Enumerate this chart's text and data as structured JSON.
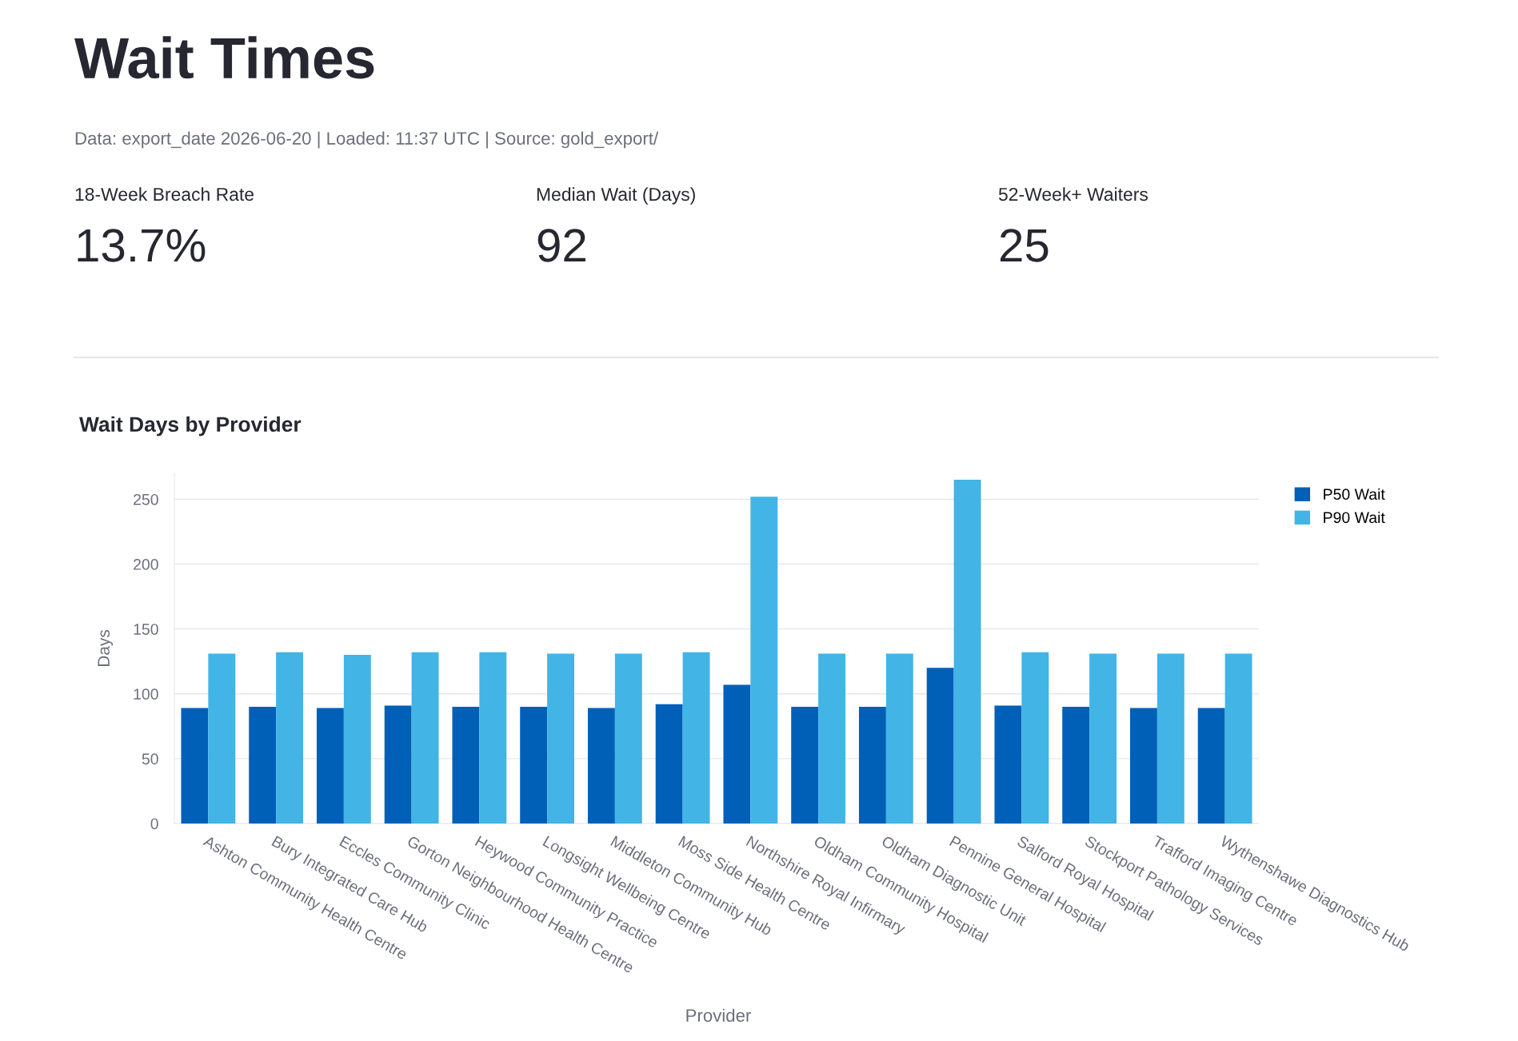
{
  "chart_data": [
    {
      "type": "other",
      "title": "Wait Times",
      "subtitle": "Data: export_date 2026-06-20 | Loaded: 11:37 UTC | Source: gold_export/",
      "annotations": [
        "18-Week Breach Rate",
        "13.7%",
        "Median Wait (Days)",
        "92",
        "52-Week+ Waiters",
        "25"
      ]
    },
    {
      "type": "bar",
      "title": "Wait Days by Provider",
      "xlabel": "Provider",
      "ylabel": "Days",
      "categories": [
        "Ashton Community Health Centre",
        "Bury Integrated Care Hub",
        "Eccles Community Clinic",
        "Gorton Neighbourhood Health Centre",
        "Heywood Community Practice",
        "Longsight Wellbeing Centre",
        "Middleton Community Hub",
        "Moss Side Health Centre",
        "Northshire Royal Infirmary",
        "Oldham Community Hospital",
        "Oldham Diagnostic Unit",
        "Pennine General Hospital",
        "Salford Royal Hospital",
        "Stockport Pathology Services",
        "Trafford Imaging Centre",
        "Wythenshawe Diagnostics Hub"
      ],
      "series": [
        {
          "name": "P50 Wait",
          "color": "#0060b8",
          "values": [
            89,
            90,
            89,
            91,
            90,
            90,
            89,
            92,
            107,
            90,
            90,
            120,
            91,
            90,
            89,
            89
          ]
        },
        {
          "name": "P90 Wait",
          "color": "#42b4e6",
          "values": [
            131,
            132,
            130,
            132,
            132,
            131,
            131,
            132,
            252,
            131,
            131,
            265,
            132,
            131,
            131,
            131
          ]
        }
      ],
      "ylim": [
        0,
        270
      ],
      "yticks": [
        0,
        50,
        100,
        150,
        200,
        250
      ],
      "grid": "y",
      "legend": "top right"
    }
  ]
}
